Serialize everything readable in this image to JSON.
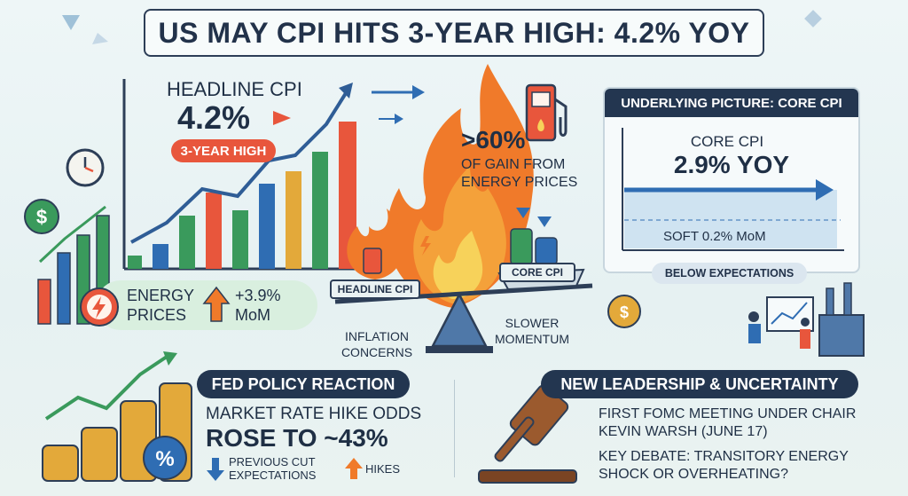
{
  "title": "US MAY CPI HITS 3-YEAR HIGH: 4.2% YOY",
  "headline": {
    "label": "HEADLINE CPI",
    "value": "4.2%",
    "badge": "3-YEAR HIGH"
  },
  "energy": {
    "label": "ENERGY PRICES",
    "change": "+3.9%",
    "period": "MoM"
  },
  "energy_gain": {
    "value": ">60%",
    "description": "OF GAIN FROM ENERGY PRICES"
  },
  "scale": {
    "left_pan": "HEADLINE CPI",
    "right_pan": "CORE CPI",
    "left_caption": "INFLATION CONCERNS",
    "right_caption": "SLOWER MOMENTUM"
  },
  "core": {
    "header": "UNDERLYING PICTURE: CORE CPI",
    "label": "CORE CPI",
    "value": "2.9% YOY",
    "mom": "SOFT 0.2% MoM",
    "badge": "BELOW EXPECTATIONS"
  },
  "fed": {
    "header": "FED POLICY REACTION",
    "odds_label": "MARKET RATE HIKE ODDS",
    "odds_value": "ROSE TO ~43%",
    "previous": "PREVIOUS CUT EXPECTATIONS",
    "hikes": "HIKES",
    "percent_symbol": "%"
  },
  "leadership": {
    "header": "NEW LEADERSHIP & UNCERTAINTY",
    "meeting": "FIRST FOMC MEETING UNDER CHAIR KEVIN WARSH (JUNE 17)",
    "debate": "KEY DEBATE: TRANSITORY ENERGY SHOCK OR OVERHEATING?"
  },
  "icons": {
    "dollar_symbol": "$"
  },
  "colors": {
    "navy": "#233650",
    "red": "#e8563c",
    "orange": "#f07a2a",
    "green": "#3a9a5c",
    "blue": "#2f6db3",
    "gold": "#e3a93a"
  }
}
